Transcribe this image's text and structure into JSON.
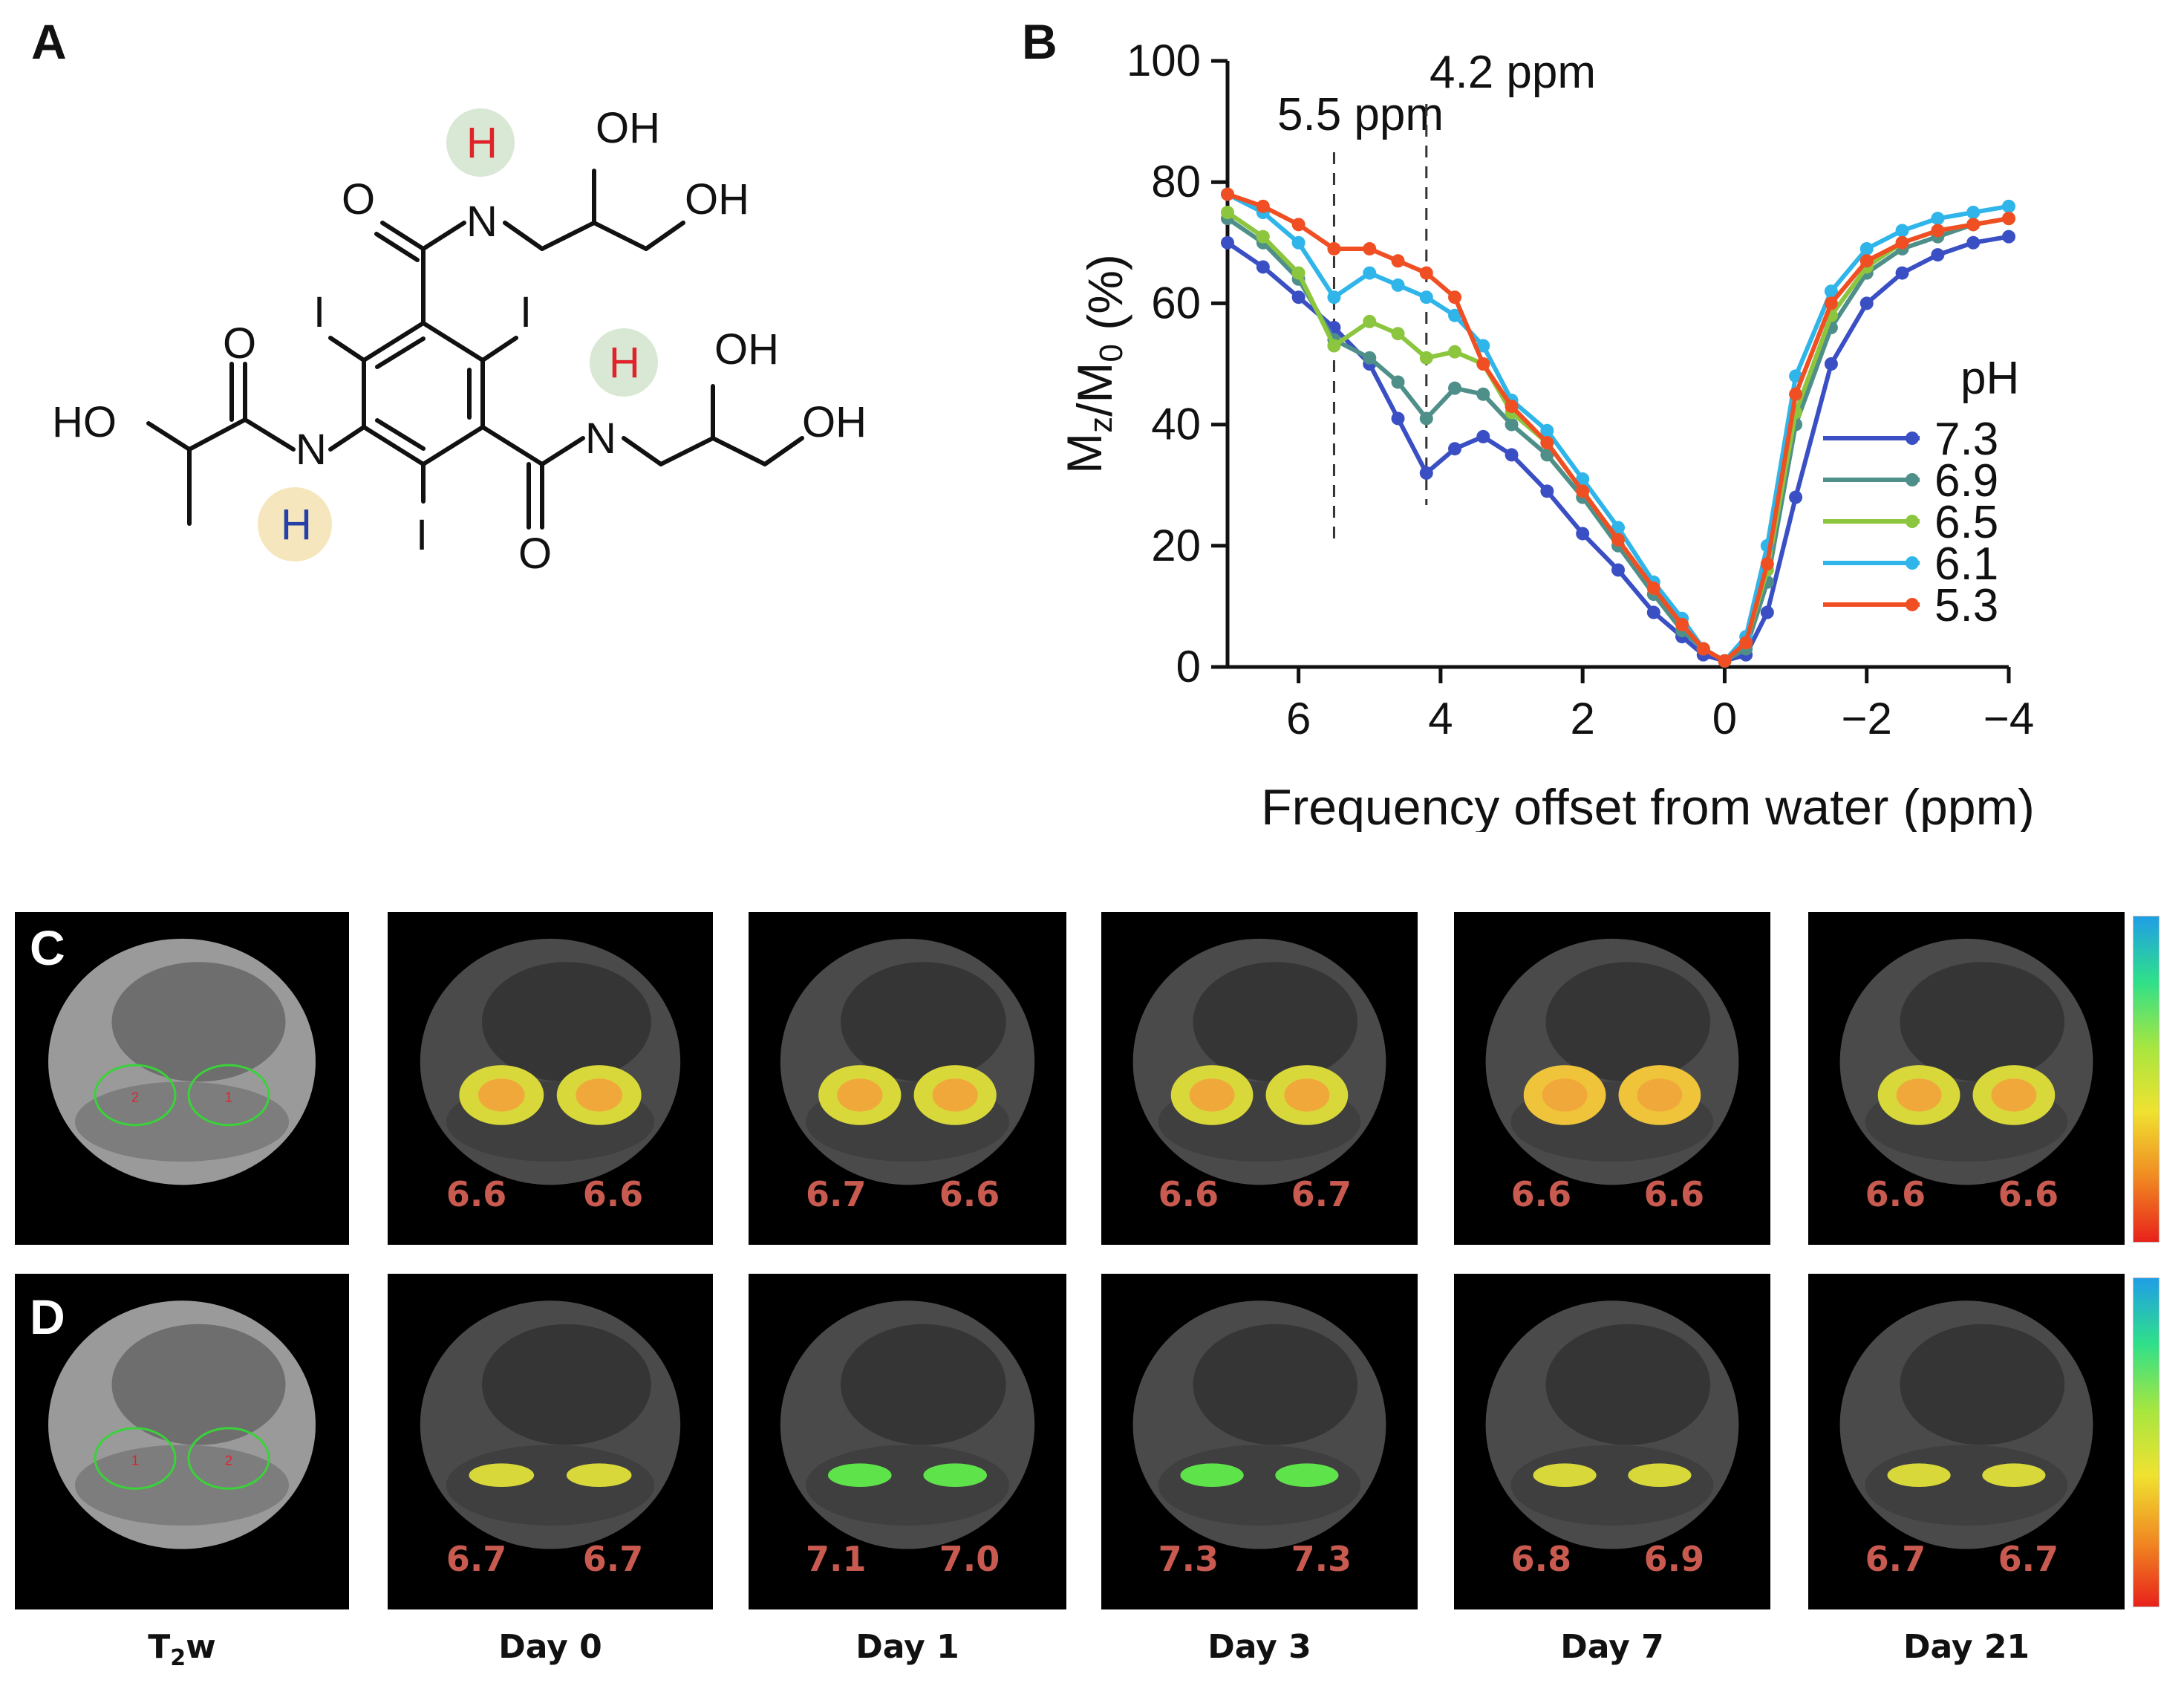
{
  "panels": {
    "a": "A",
    "b": "B",
    "c": "C",
    "d": "D"
  },
  "molecule": {
    "atoms": {
      "o_top": "O",
      "n_top": "N",
      "h_top": "H",
      "oh_top1": "OH",
      "oh_top2": "OH",
      "i_left": "I",
      "i_right": "I",
      "i_bottom": "I",
      "o_left": "O",
      "ho_left": "HO",
      "n_left": "N",
      "h_left": "H",
      "n_right": "N",
      "h_right": "H",
      "o_bottom": "O",
      "oh_right1": "OH",
      "oh_right2": "OH"
    },
    "colors": {
      "h_red": "#e0232a",
      "h_blue": "#2540a8",
      "glow_green": "#d9e8d4",
      "glow_yellow": "#f6e6bd"
    }
  },
  "chart_data": {
    "type": "line",
    "title": "",
    "xlabel": "Frequency offset from water (ppm)",
    "ylabel": "Mz/M0 (%)",
    "ylabel_main": "M",
    "ylabel_sub1": "z",
    "ylabel_mid": "/M",
    "ylabel_sub2": "0",
    "ylabel_tail": " (%)",
    "xlim": [
      7,
      -4
    ],
    "ylim": [
      0,
      100
    ],
    "x_ticks": [
      6,
      4,
      2,
      0,
      -2,
      -4
    ],
    "x_tick_labels": [
      "6",
      "4",
      "2",
      "0",
      "−2",
      "−4"
    ],
    "y_ticks": [
      0,
      20,
      40,
      60,
      80,
      100
    ],
    "y_tick_labels": [
      "0",
      "20",
      "40",
      "60",
      "80",
      "100"
    ],
    "grid": false,
    "legend_title": "pH",
    "legend_position": "right",
    "annotations": [
      {
        "text": "5.5 ppm",
        "x": 5.5
      },
      {
        "text": "4.2 ppm",
        "x": 4.2
      }
    ],
    "x": [
      7.0,
      6.5,
      6.0,
      5.5,
      5.0,
      4.6,
      4.2,
      3.8,
      3.4,
      3.0,
      2.5,
      2.0,
      1.5,
      1.0,
      0.6,
      0.3,
      0.0,
      -0.3,
      -0.6,
      -1.0,
      -1.5,
      -2.0,
      -2.5,
      -3.0,
      -3.5,
      -4.0
    ],
    "series": [
      {
        "name": "7.3",
        "color": "#3a4fc4",
        "values": [
          70,
          66,
          61,
          56,
          50,
          41,
          32,
          36,
          38,
          35,
          29,
          22,
          16,
          9,
          5,
          2,
          1,
          2,
          9,
          28,
          50,
          60,
          65,
          68,
          70,
          71
        ]
      },
      {
        "name": "6.9",
        "color": "#4f8f8a",
        "values": [
          74,
          70,
          64,
          54,
          51,
          47,
          41,
          46,
          45,
          40,
          35,
          28,
          20,
          12,
          6,
          3,
          1,
          3,
          14,
          40,
          56,
          65,
          69,
          71,
          73,
          74
        ]
      },
      {
        "name": "6.5",
        "color": "#8cc63f",
        "values": [
          75,
          71,
          65,
          53,
          57,
          55,
          51,
          52,
          50,
          42,
          37,
          29,
          21,
          13,
          7,
          3,
          1,
          4,
          16,
          42,
          58,
          66,
          70,
          72,
          73,
          74
        ]
      },
      {
        "name": "6.1",
        "color": "#2fb5ea",
        "values": [
          78,
          75,
          70,
          61,
          65,
          63,
          61,
          58,
          53,
          44,
          39,
          31,
          23,
          14,
          8,
          3,
          1,
          5,
          20,
          48,
          62,
          69,
          72,
          74,
          75,
          76
        ]
      },
      {
        "name": "5.3",
        "color": "#ef4f23",
        "values": [
          78,
          76,
          73,
          69,
          69,
          67,
          65,
          61,
          50,
          43,
          37,
          29,
          21,
          13,
          7,
          3,
          1,
          4,
          17,
          45,
          60,
          67,
          70,
          72,
          73,
          74
        ]
      }
    ]
  },
  "images": {
    "columns": [
      "T₂w",
      "Day 0",
      "Day 1",
      "Day 3",
      "Day 7",
      "Day 21"
    ],
    "col_t2w_main": "T",
    "col_t2w_sub": "2",
    "col_t2w_tail": "w",
    "row_c_values": [
      [
        "6.6",
        "6.6"
      ],
      [
        "6.7",
        "6.6"
      ],
      [
        "6.6",
        "6.7"
      ],
      [
        "6.6",
        "6.6"
      ],
      [
        "6.6",
        "6.6"
      ]
    ],
    "row_d_values": [
      [
        "6.7",
        "6.7"
      ],
      [
        "7.1",
        "7.0"
      ],
      [
        "7.3",
        "7.3"
      ],
      [
        "6.8",
        "6.9"
      ],
      [
        "6.7",
        "6.7"
      ]
    ],
    "roi_labels_c": [
      "2",
      "1"
    ],
    "roi_labels_d": [
      "1",
      "2"
    ],
    "colorbar_colors": [
      "#1f9ee6",
      "#2fe08a",
      "#a6e640",
      "#f0e230",
      "#f08a22",
      "#e8221a"
    ]
  }
}
